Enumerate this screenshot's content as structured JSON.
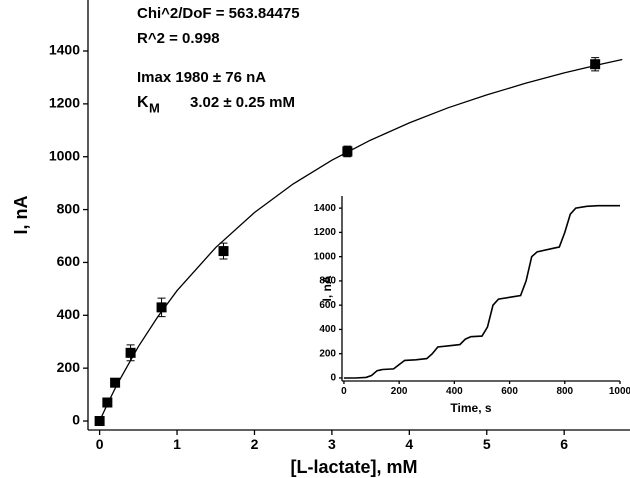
{
  "chart_data": [
    {
      "type": "scatter",
      "xlabel": "[L-lactate], mM",
      "ylabel": "I, nA",
      "annotations": [
        {
          "text": "Chi^2/DoF = 563.84475"
        },
        {
          "text": "R^2  =  0.998"
        },
        {
          "text": "Imax  1980 ± 76 nA"
        },
        {
          "label": "K",
          "sub": "M",
          "text": "3.02 ± 0.25 mM"
        }
      ],
      "x": [
        0,
        0.1,
        0.2,
        0.4,
        0.8,
        1.6,
        3.2,
        6.4
      ],
      "values": [
        0,
        70,
        145,
        258,
        430,
        643,
        1020,
        1350
      ],
      "errors": [
        8,
        8,
        10,
        30,
        35,
        30,
        20,
        25
      ],
      "color": "#000000",
      "fit": {
        "x": [
          0,
          0.1,
          0.2,
          0.25,
          0.5,
          0.75,
          1,
          1.5,
          2,
          2.5,
          3,
          3.5,
          4,
          4.5,
          5,
          5.5,
          6,
          6.5,
          6.75
        ],
        "values": [
          0,
          64,
          123,
          151,
          281,
          394,
          493,
          657,
          789,
          897,
          987,
          1063,
          1128,
          1185,
          1234,
          1278,
          1317,
          1352,
          1368
        ]
      },
      "xlim": [
        -0.15,
        6.85
      ],
      "ylim": [
        -34,
        1593
      ],
      "xticks": [
        0,
        1,
        2,
        3,
        4,
        5,
        6
      ],
      "yticks": [
        0,
        200,
        400,
        600,
        800,
        1000,
        1200,
        1400
      ]
    },
    {
      "type": "line",
      "xlabel": "Time, s",
      "ylabel": "I, nA",
      "x": [
        0,
        40,
        80,
        100,
        120,
        140,
        180,
        200,
        220,
        260,
        300,
        320,
        340,
        380,
        420,
        440,
        460,
        500,
        520,
        540,
        560,
        600,
        640,
        660,
        680,
        700,
        760,
        780,
        800,
        820,
        840,
        880,
        920,
        1000
      ],
      "values": [
        0,
        0,
        5,
        20,
        60,
        70,
        75,
        110,
        145,
        150,
        160,
        200,
        255,
        265,
        275,
        320,
        340,
        345,
        420,
        600,
        650,
        665,
        680,
        800,
        1000,
        1040,
        1070,
        1080,
        1200,
        1350,
        1400,
        1415,
        1420,
        1420
      ],
      "color": "#000000",
      "xlim": [
        -7,
        1000
      ],
      "ylim": [
        -25,
        1500
      ],
      "xticks": [
        0,
        200,
        400,
        600,
        800,
        1000
      ],
      "yticks": [
        0,
        200,
        400,
        600,
        800,
        1000,
        1200,
        1400
      ]
    }
  ]
}
